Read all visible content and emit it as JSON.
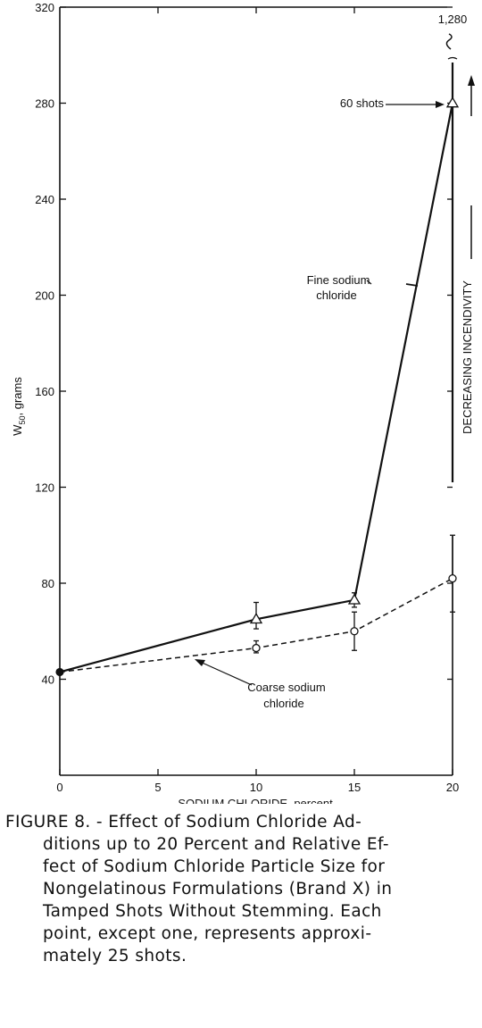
{
  "chart_data": {
    "type": "line",
    "xlabel": "SODIUM CHLORIDE, percent",
    "ylabel_main": "W",
    "ylabel_sub": "50",
    "ylabel_suffix": ", grams",
    "xlim": [
      0,
      20
    ],
    "ylim": [
      0,
      320
    ],
    "x_ticks": [
      0,
      5,
      10,
      15,
      20
    ],
    "y_ticks": [
      40,
      80,
      120,
      160,
      200,
      240,
      280,
      320
    ],
    "grid": false,
    "series": [
      {
        "name": "Fine sodium chloride",
        "line_style": "solid",
        "marker": "triangle",
        "points": [
          {
            "x": 0,
            "y": 43,
            "err_low": null,
            "err_high": null
          },
          {
            "x": 10,
            "y": 65,
            "err_low": 61,
            "err_high": 72
          },
          {
            "x": 15,
            "y": 73,
            "err_low": 70,
            "err_high": 76
          },
          {
            "x": 20,
            "y": 280,
            "err_low": null,
            "err_high": null
          }
        ]
      },
      {
        "name": "Coarse sodium chloride",
        "line_style": "dashed",
        "marker": "circle",
        "points": [
          {
            "x": 0,
            "y": 43,
            "err_low": null,
            "err_high": null
          },
          {
            "x": 10,
            "y": 53,
            "err_low": 51,
            "err_high": 56
          },
          {
            "x": 15,
            "y": 60,
            "err_low": 52,
            "err_high": 68
          },
          {
            "x": 20,
            "y": 82,
            "err_low": 68,
            "err_high": 100
          }
        ]
      }
    ],
    "labels": {
      "fine_line1": "Fine sodium",
      "fine_line2": "chloride",
      "coarse_line1": "Coarse sodium",
      "coarse_line2": "chloride",
      "shots_note": "60 shots",
      "offscale_value": "1,280",
      "incendivity": "DECREASING INCENDIVITY"
    }
  },
  "caption": {
    "line1": "FIGURE 8. - Effect of Sodium Chloride Ad-",
    "line2": "ditions up to 20 Percent and Relative Ef-",
    "line3": "fect of Sodium Chloride Particle Size for",
    "line4": "Nongelatinous Formulations (Brand X) in",
    "line5": "Tamped Shots Without Stemming. Each",
    "line6": "point, except one, represents approxi-",
    "line7": "mately 25 shots."
  }
}
